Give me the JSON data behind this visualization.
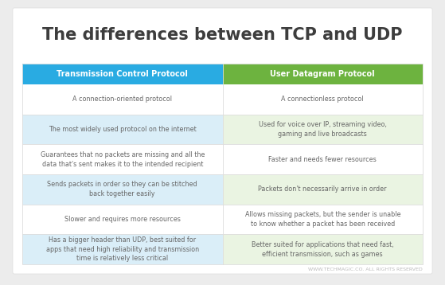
{
  "title": "The differences between TCP and UDP",
  "title_fontsize": 15,
  "title_color": "#3d3d3d",
  "header_tcp": "Transmission Control Protocol",
  "header_udp": "User Datagram Protocol",
  "header_tcp_color": "#29abe2",
  "header_udp_color": "#6db33f",
  "header_text_color": "#ffffff",
  "row_bg_light_tcp": "#daeef8",
  "row_bg_light_udp": "#eaf4e2",
  "row_bg_white": "#ffffff",
  "text_color": "#666666",
  "background_color": "#ececec",
  "table_background": "#ffffff",
  "rows": [
    {
      "tcp": "A connection-oriented protocol",
      "udp": "A connectionless protocol",
      "shaded": false
    },
    {
      "tcp": "The most widely used protocol on the internet",
      "udp": "Used for voice over IP, streaming video,\ngaming and live broadcasts",
      "shaded": true
    },
    {
      "tcp": "Guarantees that no packets are missing and all the\ndata that's sent makes it to the intended recipient",
      "udp": "Faster and needs fewer resources",
      "shaded": false
    },
    {
      "tcp": "Sends packets in order so they can be stitched\nback together easily",
      "udp": "Packets don't necessarily arrive in order",
      "shaded": true
    },
    {
      "tcp": "Slower and requires more resources",
      "udp": "Allows missing packets, but the sender is unable\nto know whether a packet has been received",
      "shaded": false
    },
    {
      "tcp": "Has a bigger header than UDP, best suited for\napps that need high reliability and transmission\ntime is relatively less critical",
      "udp": "Better suited for applications that need fast,\nefficient transmission, such as games",
      "shaded": true
    }
  ],
  "footer_text": "WWW.TECHMAGIC.CO. ALL RIGHTS RESERVED",
  "footer_color": "#bbbbbb",
  "footer_fontsize": 4.5,
  "header_fontsize": 7,
  "cell_fontsize": 5.8
}
